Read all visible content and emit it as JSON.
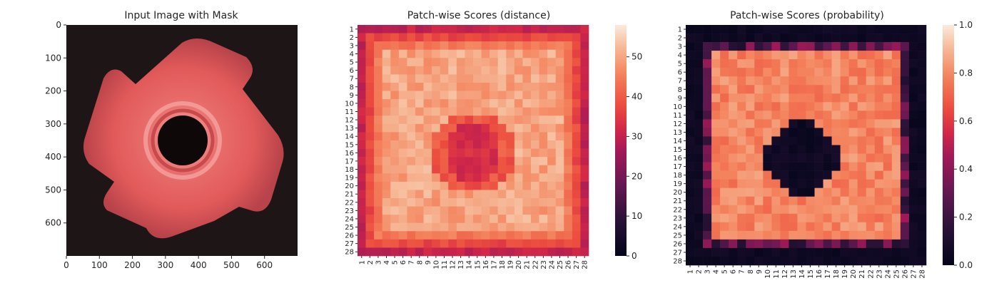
{
  "chart_data": [
    {
      "type": "image",
      "title": "Input Image with Mask",
      "x_ticks": [
        0,
        100,
        200,
        300,
        400,
        500,
        600
      ],
      "y_ticks": [
        0,
        100,
        200,
        300,
        400,
        500,
        600
      ],
      "xlim": [
        0,
        700
      ],
      "ylim": [
        700,
        0
      ],
      "colors": {
        "background": "#1e1616",
        "object": "#e25a5a",
        "highlight": "#f4a3a0",
        "shadow": "#b53e42"
      }
    },
    {
      "type": "heatmap",
      "title": "Patch-wise Scores (distance)",
      "x_ticks": [
        "1",
        "2",
        "3",
        "4",
        "5",
        "6",
        "7",
        "8",
        "9",
        "10",
        "11",
        "12",
        "13",
        "14",
        "15",
        "16",
        "17",
        "18",
        "19",
        "20",
        "21",
        "22",
        "23",
        "24",
        "25",
        "26",
        "27",
        "28"
      ],
      "y_ticks": [
        "1",
        "2",
        "3",
        "4",
        "5",
        "6",
        "7",
        "8",
        "9",
        "10",
        "11",
        "12",
        "13",
        "14",
        "15",
        "16",
        "17",
        "18",
        "19",
        "20",
        "21",
        "22",
        "23",
        "24",
        "25",
        "26",
        "27",
        "28"
      ],
      "colorbar": {
        "min": 0,
        "max": 58,
        "ticks": [
          0,
          10,
          20,
          30,
          40,
          50
        ]
      }
    },
    {
      "type": "heatmap",
      "title": "Patch-wise Scores (probability)",
      "x_ticks": [
        "1",
        "2",
        "3",
        "4",
        "5",
        "6",
        "7",
        "8",
        "9",
        "10",
        "11",
        "12",
        "13",
        "14",
        "15",
        "16",
        "17",
        "18",
        "19",
        "20",
        "21",
        "22",
        "23",
        "24",
        "25",
        "26",
        "27",
        "28"
      ],
      "y_ticks": [
        "1",
        "2",
        "3",
        "4",
        "5",
        "6",
        "7",
        "8",
        "9",
        "10",
        "11",
        "12",
        "13",
        "14",
        "15",
        "16",
        "17",
        "18",
        "19",
        "20",
        "21",
        "22",
        "23",
        "24",
        "25",
        "26",
        "27",
        "28"
      ],
      "colorbar": {
        "min": 0.0,
        "max": 1.0,
        "ticks": [
          "0.0",
          "0.2",
          "0.4",
          "0.6",
          "0.8",
          "1.0"
        ]
      }
    }
  ]
}
